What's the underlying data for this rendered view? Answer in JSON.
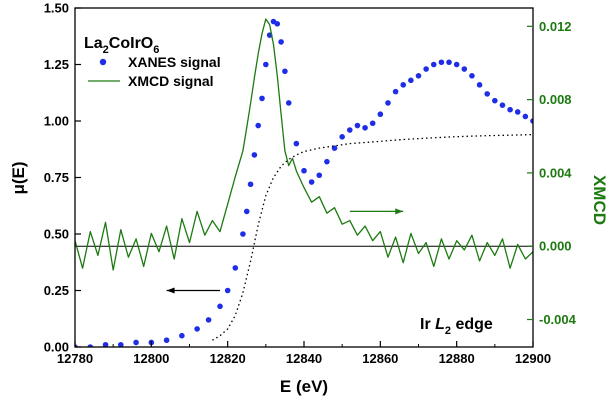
{
  "chart_data": {
    "type": "line",
    "sample_label": {
      "base": "La",
      "sub1": "2",
      "mid": "CoIrO",
      "sub2": "6"
    },
    "edge_label": {
      "prefix": "Ir ",
      "italic": "L",
      "sub": "2",
      "suffix": " edge"
    },
    "xlabel": "E (eV)",
    "ylabel": "μ(E)",
    "y2label": "XMCD",
    "xlim": [
      12780,
      12900
    ],
    "ylim": [
      0,
      1.5
    ],
    "y2lim": [
      -0.0055,
      0.013
    ],
    "xticks": [
      "12780",
      "12800",
      "12820",
      "12840",
      "12860",
      "12880",
      "12900"
    ],
    "yticks": [
      "0.00",
      "0.25",
      "0.50",
      "0.75",
      "1.00",
      "1.25",
      "1.50"
    ],
    "y2ticks": [
      "-0.004",
      "0.000",
      "0.004",
      "0.008",
      "0.012"
    ],
    "colors": {
      "xanes": "#1f2ee6",
      "xmcd": "#1c7a10",
      "background": "#000000"
    },
    "series": [
      {
        "name": "XANES signal",
        "style": "points",
        "x": [
          12780,
          12784,
          12788,
          12792,
          12796,
          12800,
          12804,
          12808,
          12812,
          12815,
          12818,
          12820,
          12822,
          12824,
          12825,
          12826,
          12827,
          12828,
          12829,
          12830,
          12831,
          12832,
          12833,
          12834,
          12835,
          12836,
          12838,
          12840,
          12842,
          12844,
          12846,
          12848,
          12850,
          12852,
          12854,
          12856,
          12858,
          12860,
          12862,
          12864,
          12866,
          12868,
          12870,
          12872,
          12874,
          12876,
          12878,
          12880,
          12882,
          12884,
          12886,
          12888,
          12890,
          12892,
          12894,
          12896,
          12898,
          12900
        ],
        "y": [
          0.0,
          0.0,
          0.01,
          0.01,
          0.02,
          0.02,
          0.03,
          0.05,
          0.08,
          0.12,
          0.18,
          0.25,
          0.35,
          0.5,
          0.6,
          0.72,
          0.85,
          0.98,
          1.1,
          1.25,
          1.38,
          1.44,
          1.43,
          1.35,
          1.22,
          1.08,
          0.9,
          0.78,
          0.73,
          0.76,
          0.82,
          0.88,
          0.93,
          0.96,
          0.98,
          0.97,
          0.99,
          1.03,
          1.08,
          1.13,
          1.16,
          1.18,
          1.2,
          1.23,
          1.25,
          1.26,
          1.26,
          1.25,
          1.23,
          1.2,
          1.16,
          1.12,
          1.09,
          1.07,
          1.05,
          1.04,
          1.02,
          1.0
        ]
      },
      {
        "name": "XMCD signal",
        "style": "line",
        "x": [
          12780,
          12782,
          12784,
          12786,
          12788,
          12790,
          12792,
          12794,
          12796,
          12798,
          12800,
          12802,
          12804,
          12806,
          12808,
          12810,
          12812,
          12814,
          12816,
          12818,
          12820,
          12822,
          12824,
          12825,
          12826,
          12827,
          12828,
          12829,
          12830,
          12831,
          12832,
          12833,
          12834,
          12835,
          12836,
          12837,
          12838,
          12840,
          12842,
          12844,
          12846,
          12848,
          12850,
          12852,
          12854,
          12856,
          12858,
          12860,
          12862,
          12864,
          12866,
          12868,
          12870,
          12872,
          12874,
          12876,
          12878,
          12880,
          12882,
          12884,
          12886,
          12888,
          12890,
          12892,
          12894,
          12896,
          12898,
          12900
        ],
        "y": [
          0.0003,
          -0.0012,
          0.0008,
          -0.0005,
          0.0013,
          -0.0013,
          0.0009,
          -0.0006,
          0.0004,
          -0.0011,
          0.0007,
          -0.0003,
          0.0011,
          -0.0007,
          0.0015,
          0.0002,
          0.0019,
          0.0006,
          0.0014,
          0.0008,
          0.0023,
          0.0038,
          0.0052,
          0.0065,
          0.0078,
          0.0092,
          0.0105,
          0.0116,
          0.0124,
          0.0121,
          0.011,
          0.0093,
          0.0072,
          0.0052,
          0.0044,
          0.0048,
          0.0041,
          0.0032,
          0.0024,
          0.0027,
          0.0018,
          0.0021,
          0.0012,
          0.0014,
          0.0006,
          0.0011,
          0.0003,
          0.0008,
          -0.0006,
          0.0005,
          -0.0009,
          0.0007,
          -0.0004,
          0.0002,
          -0.0011,
          0.0004,
          -0.0007,
          0.0003,
          -0.0002,
          0.0006,
          -0.0008,
          0.0002,
          -0.0005,
          0.0004,
          -0.0012,
          0.0001,
          -0.0007,
          -0.0003
        ]
      },
      {
        "name": "background",
        "style": "dotted",
        "x": [
          12816,
          12818,
          12820,
          12822,
          12824,
          12826,
          12828,
          12830,
          12832,
          12834,
          12836,
          12838,
          12840,
          12844,
          12848,
          12852,
          12856,
          12860,
          12866,
          12872,
          12878,
          12884,
          12890,
          12896,
          12900
        ],
        "y": [
          0.03,
          0.05,
          0.08,
          0.14,
          0.24,
          0.38,
          0.54,
          0.67,
          0.75,
          0.8,
          0.83,
          0.85,
          0.865,
          0.88,
          0.89,
          0.9,
          0.905,
          0.91,
          0.918,
          0.924,
          0.929,
          0.933,
          0.936,
          0.938,
          0.94
        ]
      }
    ],
    "zero_line_y2": 0,
    "annotations": [
      {
        "type": "arrow",
        "direction": "left",
        "color": "#000000",
        "x_from": 12818,
        "x_to": 12804,
        "y": 0.25
      },
      {
        "type": "arrow",
        "direction": "right",
        "color": "#1c7a10",
        "x_from": 12852,
        "x_to": 12866,
        "y": 0.6
      }
    ]
  }
}
